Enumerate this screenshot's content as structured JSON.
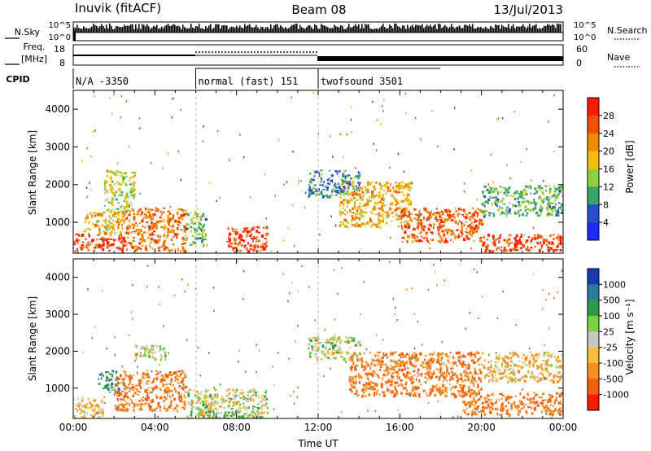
{
  "header": {
    "station": "Inuvik (fitACF)",
    "beam": "Beam 08",
    "date": "13/Jul/2013"
  },
  "noise_panel": {
    "left_label": "N.Sky",
    "right_label": "N.Search",
    "left_ticks": [
      "10^5",
      "10^0"
    ],
    "right_ticks": [
      "10^5",
      "10^0"
    ]
  },
  "freq_panel": {
    "left_label": "Freq.",
    "left_unit": "[MHz]",
    "right_label": "Nave",
    "left_ticks": [
      "18",
      "8"
    ],
    "right_ticks": [
      "60",
      "0"
    ]
  },
  "cpid": {
    "label": "CPID",
    "segments": [
      {
        "text": "N/A -3350",
        "start_hour": 0,
        "end_hour": 6
      },
      {
        "text": "normal (fast) 151",
        "start_hour": 6,
        "end_hour": 12
      },
      {
        "text": "twofsound 3501",
        "start_hour": 12,
        "end_hour": 24
      }
    ]
  },
  "axes": {
    "xlabel": "Time UT",
    "x_ticks": [
      "00:00",
      "04:00",
      "08:00",
      "12:00",
      "16:00",
      "20:00",
      "00:00"
    ],
    "ylabel": "Slant Range [km]",
    "y_ticks": [
      "1000",
      "2000",
      "3000",
      "4000"
    ]
  },
  "power_scale": {
    "label": "Power [dB]",
    "ticks": [
      "4",
      "8",
      "12",
      "16",
      "20",
      "24",
      "28"
    ],
    "colors": [
      "#1a2bff",
      "#2850c8",
      "#3aa46a",
      "#8fd040",
      "#f0c000",
      "#f08a00",
      "#f05000",
      "#ff1a00"
    ]
  },
  "velocity_scale": {
    "label": "Velocity [m s⁻¹]",
    "ticks": [
      "1000",
      "500",
      "100",
      "25",
      "-25",
      "-100",
      "-500",
      "-1000"
    ],
    "colors": [
      "#1a3ab0",
      "#2e7a9a",
      "#2e9a4a",
      "#7ad040",
      "#c8c8c0",
      "#f5c040",
      "#f59020",
      "#f06010",
      "#ff1a00"
    ]
  },
  "chart_data": {
    "type": "heatmap",
    "x_range": [
      0,
      24
    ],
    "y_range": [
      180,
      4500
    ],
    "panels": [
      {
        "name": "Power",
        "unit": "dB",
        "regions": [
          {
            "t": [
              0.0,
              2.5
            ],
            "r": [
              250,
              700
            ],
            "value": 28
          },
          {
            "t": [
              0.5,
              2.5
            ],
            "r": [
              700,
              1300
            ],
            "value": 20
          },
          {
            "t": [
              1.5,
              3.0
            ],
            "r": [
              1300,
              2400
            ],
            "value": 16
          },
          {
            "t": [
              2.5,
              5.5
            ],
            "r": [
              250,
              1400
            ],
            "value": 24
          },
          {
            "t": [
              5.5,
              6.5
            ],
            "r": [
              400,
              1300
            ],
            "value": 12
          },
          {
            "t": [
              7.5,
              9.5
            ],
            "r": [
              250,
              900
            ],
            "value": 28
          },
          {
            "t": [
              11.5,
              14.0
            ],
            "r": [
              1700,
              2400
            ],
            "value": 8
          },
          {
            "t": [
              13.0,
              16.5
            ],
            "r": [
              900,
              2100
            ],
            "value": 20
          },
          {
            "t": [
              16.0,
              20.0
            ],
            "r": [
              500,
              1400
            ],
            "value": 26
          },
          {
            "t": [
              20.0,
              24.0
            ],
            "r": [
              250,
              700
            ],
            "value": 28
          },
          {
            "t": [
              20.0,
              24.0
            ],
            "r": [
              1200,
              2000
            ],
            "value": 12
          }
        ]
      },
      {
        "name": "Velocity",
        "unit": "m s-1",
        "regions": [
          {
            "t": [
              0.0,
              1.5
            ],
            "r": [
              200,
              800
            ],
            "value": -100
          },
          {
            "t": [
              1.2,
              2.2
            ],
            "r": [
              900,
              1500
            ],
            "value": 500
          },
          {
            "t": [
              2.0,
              5.5
            ],
            "r": [
              400,
              1500
            ],
            "value": -500
          },
          {
            "t": [
              3.0,
              4.5
            ],
            "r": [
              1800,
              2200
            ],
            "value": 0
          },
          {
            "t": [
              5.5,
              9.5
            ],
            "r": [
              200,
              1000
            ],
            "value": 0
          },
          {
            "t": [
              6.0,
              9.0
            ],
            "r": [
              180,
              400
            ],
            "value": 100
          },
          {
            "t": [
              11.5,
              14.0
            ],
            "r": [
              1800,
              2400
            ],
            "value": 0
          },
          {
            "t": [
              13.5,
              20.0
            ],
            "r": [
              800,
              2000
            ],
            "value": -500
          },
          {
            "t": [
              19.0,
              24.0
            ],
            "r": [
              300,
              900
            ],
            "value": -500
          },
          {
            "t": [
              20.0,
              24.0
            ],
            "r": [
              1200,
              2000
            ],
            "value": -100
          }
        ]
      }
    ]
  }
}
